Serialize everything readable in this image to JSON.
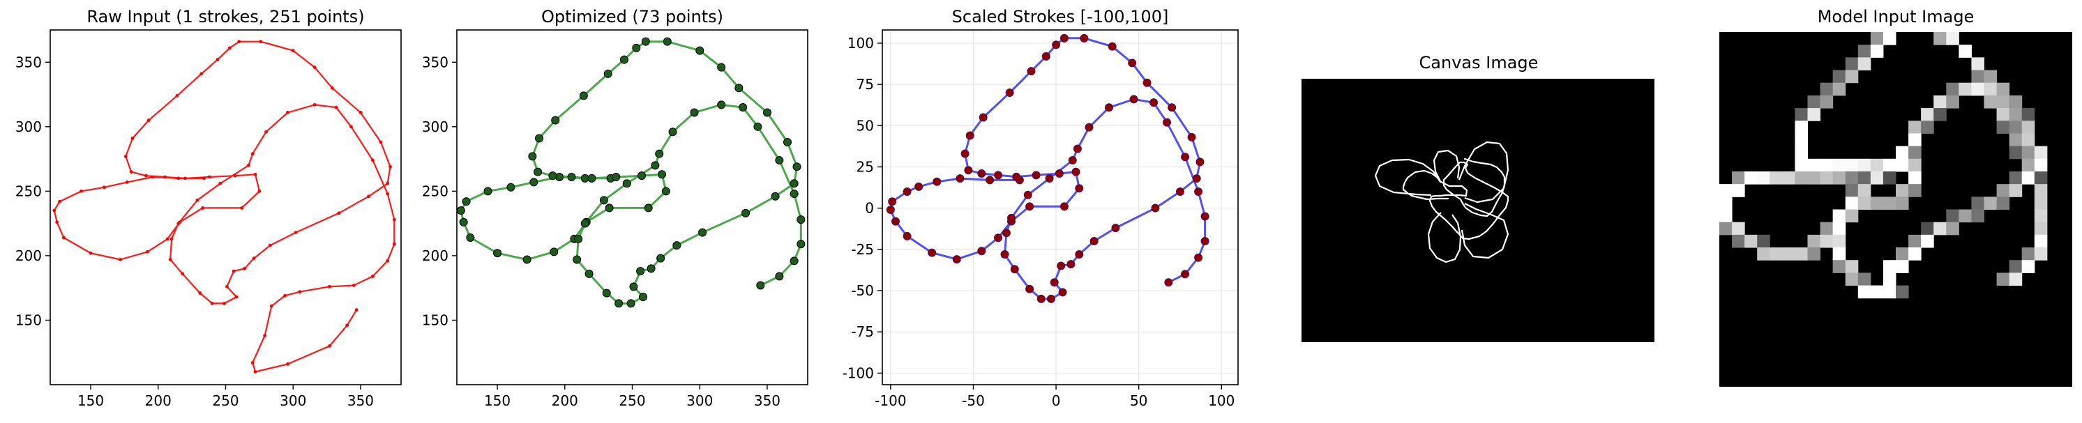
{
  "figure": {
    "panels": [
      {
        "title": "Raw Input (1 strokes, 251 points)"
      },
      {
        "title": "Optimized (73 points)"
      },
      {
        "title": "Scaled Strokes [-100,100]"
      },
      {
        "title": "Canvas Image"
      },
      {
        "title": "Model Input Image"
      }
    ]
  },
  "colors": {
    "raw": "#ff0000",
    "optimized_line": "#3a9f3a",
    "optimized_point": "#1f5b1f",
    "scaled_line": "#3333ee",
    "scaled_point": "#8b0000",
    "canvas_bg": "#000000",
    "canvas_stroke": "#ffffff",
    "grid": "#e6e6e6"
  },
  "chart_data": [
    {
      "type": "line",
      "title": "Raw Input (1 strokes, 251 points)",
      "xlim": [
        120,
        380
      ],
      "ylim": [
        100,
        375
      ],
      "xticks": [
        150,
        200,
        250,
        300,
        350
      ],
      "yticks": [
        150,
        200,
        250,
        300,
        350
      ],
      "grid": false,
      "series": [
        {
          "x": [
            234,
            215,
            196,
            177,
            160,
            143,
            127,
            123,
            125,
            130,
            150,
            172,
            192,
            207,
            216,
            233,
            262,
            275,
            272,
            257,
            238,
            220,
            205,
            191,
            180,
            176,
            181,
            193,
            214,
            232,
            244,
            253,
            260,
            276,
            300,
            316,
            329,
            350,
            365,
            372,
            370,
            356,
            334,
            302,
            283,
            271,
            264,
            256,
            251,
            258,
            249,
            240,
            231,
            218,
            209,
            210,
            215,
            229,
            246,
            267,
            270,
            280,
            296,
            316,
            332,
            343,
            359,
            370,
            375,
            375,
            370,
            359,
            345,
            327,
            305,
            294,
            284,
            279,
            270,
            272,
            296,
            327,
            340,
            347
          ],
          "y": [
            260,
            260,
            261,
            257,
            253,
            250,
            242,
            235,
            226,
            214,
            202,
            197,
            203,
            213,
            226,
            237,
            237,
            250,
            263,
            262,
            261,
            260,
            261,
            262,
            265,
            277,
            291,
            305,
            324,
            341,
            352,
            361,
            366,
            366,
            359,
            346,
            330,
            311,
            288,
            269,
            256,
            246,
            233,
            218,
            208,
            198,
            190,
            188,
            176,
            168,
            163,
            163,
            171,
            186,
            197,
            213,
            225,
            243,
            256,
            270,
            279,
            296,
            311,
            317,
            315,
            300,
            274,
            248,
            228,
            209,
            196,
            184,
            177,
            176,
            172,
            169,
            161,
            138,
            117,
            110,
            116,
            130,
            146,
            158
          ]
        }
      ]
    },
    {
      "type": "line",
      "title": "Optimized (73 points)",
      "xlim": [
        120,
        380
      ],
      "ylim": [
        100,
        375
      ],
      "xticks": [
        150,
        200,
        250,
        300,
        350
      ],
      "yticks": [
        150,
        200,
        250,
        300,
        350
      ],
      "grid": false,
      "series": [
        {
          "x": [
            234,
            215,
            196,
            177,
            160,
            143,
            127,
            123,
            125,
            130,
            150,
            172,
            192,
            207,
            216,
            233,
            262,
            275,
            272,
            257,
            238,
            220,
            205,
            191,
            180,
            176,
            181,
            193,
            214,
            232,
            244,
            253,
            260,
            276,
            300,
            316,
            329,
            350,
            365,
            372,
            370,
            356,
            334,
            302,
            283,
            271,
            264,
            256,
            251,
            258,
            249,
            240,
            231,
            218,
            209,
            210,
            215,
            229,
            246,
            267,
            270,
            280,
            296,
            316,
            332,
            343,
            359,
            370,
            375,
            375,
            370,
            359,
            345
          ],
          "y": [
            260,
            260,
            261,
            257,
            253,
            250,
            242,
            235,
            226,
            214,
            202,
            197,
            203,
            213,
            226,
            237,
            237,
            250,
            263,
            262,
            261,
            260,
            261,
            262,
            265,
            277,
            291,
            305,
            324,
            341,
            352,
            361,
            366,
            366,
            359,
            346,
            330,
            311,
            288,
            269,
            256,
            246,
            233,
            218,
            208,
            198,
            190,
            188,
            176,
            168,
            163,
            163,
            171,
            186,
            197,
            213,
            225,
            243,
            256,
            270,
            279,
            296,
            311,
            317,
            315,
            300,
            274,
            248,
            228,
            209,
            196,
            184,
            177
          ]
        }
      ]
    },
    {
      "type": "line",
      "title": "Scaled Strokes [-100,100]",
      "xlim": [
        -105,
        110
      ],
      "ylim": [
        -107,
        108
      ],
      "xticks": [
        -100,
        -50,
        0,
        50,
        100
      ],
      "yticks": [
        -100,
        -75,
        -50,
        -25,
        0,
        25,
        50,
        75,
        100
      ],
      "grid": true,
      "series": [
        {
          "x": [
            -22,
            -40,
            -58,
            -72,
            -83,
            -90,
            -99,
            -100,
            -97,
            -90,
            -75,
            -60,
            -45,
            -35,
            -27,
            -16,
            5,
            14,
            12,
            2,
            -12,
            -24,
            -35,
            -45,
            -53,
            -55,
            -52,
            -44,
            -28,
            -15,
            -6,
            0,
            5,
            17,
            34,
            46,
            55,
            70,
            82,
            87,
            85,
            75,
            60,
            36,
            23,
            14,
            9,
            3,
            -1,
            4,
            -3,
            -9,
            -16,
            -25,
            -31,
            -30,
            -27,
            -17,
            -4,
            10,
            13,
            20,
            32,
            47,
            59,
            67,
            78,
            86,
            90,
            90,
            86,
            78,
            68
          ],
          "y": [
            17,
            17,
            18,
            16,
            13,
            10,
            4,
            -1,
            -8,
            -17,
            -27,
            -31,
            -26,
            -18,
            -8,
            1,
            1,
            12,
            22,
            21,
            20,
            19,
            20,
            21,
            23,
            33,
            44,
            55,
            70,
            83,
            92,
            99,
            103,
            103,
            98,
            88,
            76,
            61,
            43,
            28,
            18,
            10,
            0,
            -12,
            -20,
            -28,
            -34,
            -35,
            -45,
            -51,
            -55,
            -55,
            -49,
            -37,
            -28,
            -15,
            -6,
            8,
            18,
            29,
            36,
            49,
            61,
            66,
            64,
            52,
            31,
            10,
            -5,
            -20,
            -30,
            -40,
            -45
          ]
        }
      ]
    },
    {
      "type": "other",
      "title": "Canvas Image"
    },
    {
      "type": "heatmap",
      "title": "Model Input Image"
    }
  ]
}
